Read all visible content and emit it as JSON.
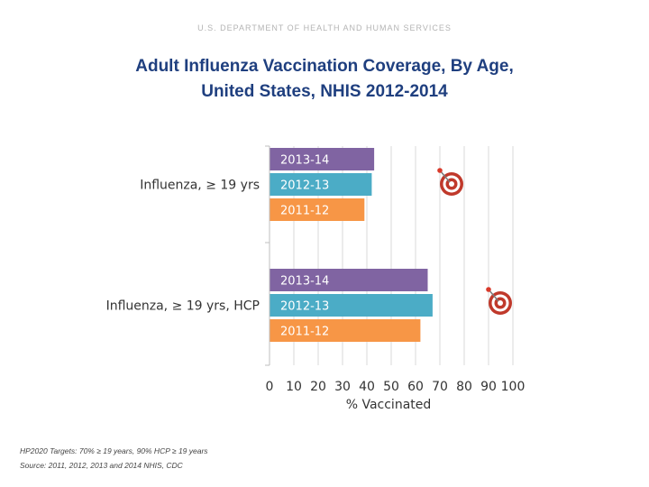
{
  "header": {
    "agency": "U.S. DEPARTMENT OF HEALTH AND HUMAN SERVICES"
  },
  "title_line1": "Adult Influenza Vaccination Coverage, By Age,",
  "title_line2": "United States, NHIS 2012-2014",
  "chart_data": {
    "type": "bar",
    "orientation": "horizontal",
    "categories": [
      "Influenza, ≥ 19 yrs",
      "Influenza, ≥ 19 yrs, HCP"
    ],
    "series": [
      {
        "name": "2013-14",
        "values": [
          43,
          65
        ],
        "color": "#8064a2"
      },
      {
        "name": "2012-13",
        "values": [
          42,
          67
        ],
        "color": "#4bacc6"
      },
      {
        "name": "2011-12",
        "values": [
          39,
          62
        ],
        "color": "#f79646"
      }
    ],
    "targets": [
      70,
      90
    ],
    "target_icon": "bullseye-target-icon",
    "x_ticks": [
      "0",
      "10",
      "20",
      "30",
      "40",
      "50",
      "60",
      "70",
      "80",
      "90",
      "100"
    ],
    "xlabel": "% Vaccinated",
    "xlim": [
      0,
      100
    ],
    "grid": "vertical"
  },
  "footnote_targets": "HP2020 Targets: 70% ≥ 19 years, 90% HCP ≥ 19 years",
  "footnote_source": "Source:  2011, 2012, 2013 and 2014 NHIS, CDC"
}
